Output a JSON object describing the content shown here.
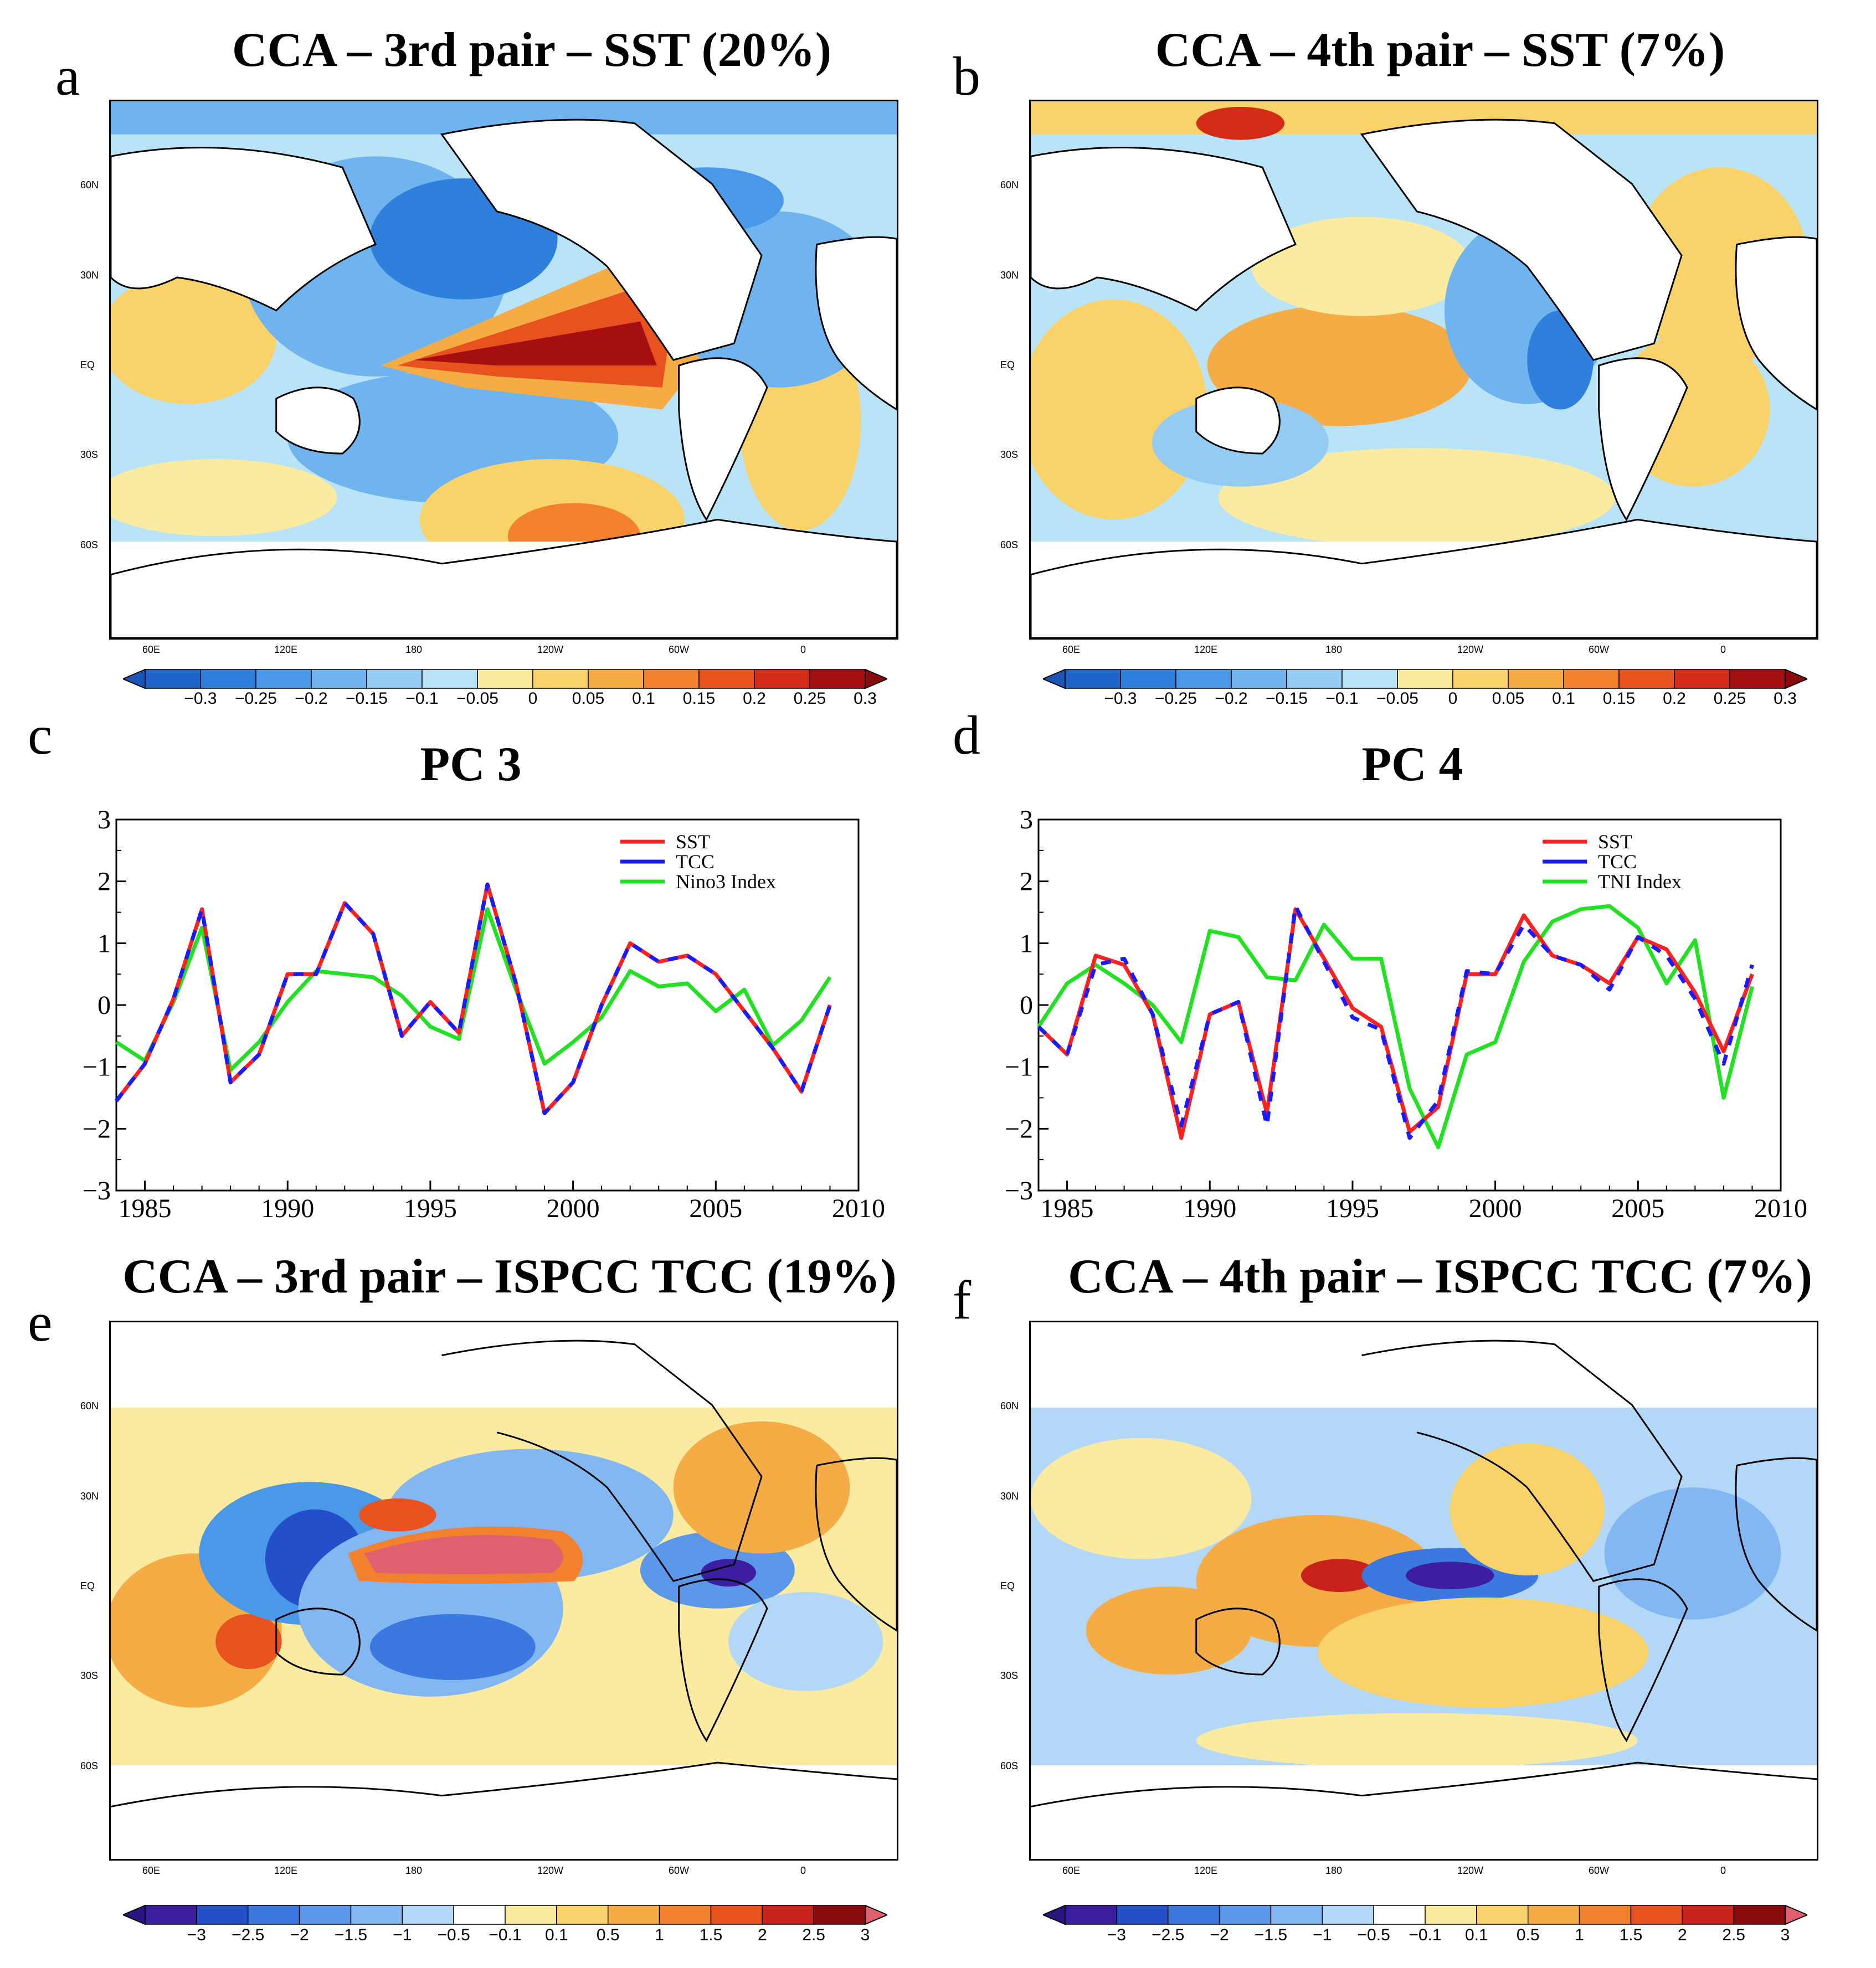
{
  "panels": {
    "a": {
      "letter": "a",
      "title": "CCA – 3rd pair – SST (20%)"
    },
    "b": {
      "letter": "b",
      "title": "CCA – 4th pair – SST (7%)"
    },
    "c": {
      "letter": "c",
      "title": "PC 3"
    },
    "d": {
      "letter": "d",
      "title": "PC 4"
    },
    "e": {
      "letter": "e",
      "title": "CCA – 3rd pair – ISPCC TCC (19%)"
    },
    "f": {
      "letter": "f",
      "title": "CCA – 4th pair – ISPCC TCC (7%)"
    }
  },
  "map_axes": {
    "lat_labels": [
      "60N",
      "30N",
      "EQ",
      "30S",
      "60S"
    ],
    "lon_labels": [
      "60E",
      "120E",
      "180",
      "120W",
      "60W",
      "0"
    ]
  },
  "colorbars": {
    "sst": {
      "ticks": [
        "-0.3",
        "-0.25",
        "-0.2",
        "-0.15",
        "-0.1",
        "-0.05",
        "0",
        "0.05",
        "0.1",
        "0.15",
        "0.2",
        "0.25",
        "0.3"
      ],
      "colors": [
        "#1e63c8",
        "#2f7fdc",
        "#4a98e8",
        "#6fb3ef",
        "#93cbf3",
        "#b9e3f7",
        "#fbeba0",
        "#fad26a",
        "#f6ac45",
        "#f2802c",
        "#e8521e",
        "#d22b17",
        "#a50f0f"
      ],
      "low_color": "#1a56b8",
      "high_color": "#8a0b0b"
    },
    "tcc": {
      "ticks": [
        "-3",
        "-2.5",
        "-2",
        "-1.5",
        "-1",
        "-0.5",
        "-0.1",
        "0.1",
        "0.5",
        "1",
        "1.5",
        "2",
        "2.5",
        "3"
      ],
      "colors": [
        "#3b1fa0",
        "#2350c8",
        "#3b78df",
        "#5c98ea",
        "#83b7f2",
        "#b3d8f7",
        "#ffffff",
        "#fbeba0",
        "#fad26a",
        "#f6ac45",
        "#f2802c",
        "#e8521e",
        "#c9221a",
        "#8a0b0b"
      ],
      "low_color": "#2a1580",
      "high_color": "#e06070"
    }
  },
  "chart_data": [
    {
      "type": "line",
      "panel": "c",
      "title": "PC 3",
      "x": [
        1984,
        1985,
        1986,
        1987,
        1988,
        1989,
        1990,
        1991,
        1992,
        1993,
        1994,
        1995,
        1996,
        1997,
        1998,
        1999,
        2000,
        2001,
        2002,
        2003,
        2004,
        2005,
        2006,
        2007,
        2008,
        2009
      ],
      "xticks": [
        1985,
        1990,
        1995,
        2000,
        2005,
        2010
      ],
      "yticks": [
        -3,
        -2,
        -1,
        0,
        1,
        2,
        3
      ],
      "xlim": [
        1984,
        2010
      ],
      "ylim": [
        -3,
        3
      ],
      "series": [
        {
          "name": "SST",
          "color": "#ff2020",
          "values": [
            -1.55,
            -0.95,
            0.1,
            1.55,
            -1.25,
            -0.8,
            0.5,
            0.5,
            1.65,
            1.15,
            -0.5,
            0.05,
            -0.45,
            1.95,
            0.35,
            -1.75,
            -1.25,
            0.0,
            1.0,
            0.7,
            0.8,
            0.5,
            -0.1,
            -0.7,
            -1.4,
            0.0
          ]
        },
        {
          "name": "TCC",
          "color": "#1a1aff",
          "dashed_with": "SST",
          "values": [
            -1.55,
            -0.95,
            0.1,
            1.55,
            -1.25,
            -0.8,
            0.5,
            0.5,
            1.65,
            1.15,
            -0.5,
            0.05,
            -0.45,
            1.95,
            0.35,
            -1.75,
            -1.25,
            0.0,
            1.0,
            0.7,
            0.8,
            0.5,
            -0.1,
            -0.7,
            -1.4,
            0.0
          ]
        },
        {
          "name": "Nino3 Index",
          "color": "#22e022",
          "values": [
            -0.6,
            -0.9,
            0.05,
            1.25,
            -1.05,
            -0.6,
            0.05,
            0.55,
            0.5,
            0.45,
            0.15,
            -0.35,
            -0.55,
            1.55,
            0.25,
            -0.95,
            -0.6,
            -0.2,
            0.55,
            0.3,
            0.35,
            -0.1,
            0.25,
            -0.65,
            -0.25,
            0.45
          ]
        }
      ],
      "legend": "top-right"
    },
    {
      "type": "line",
      "panel": "d",
      "title": "PC 4",
      "x": [
        1984,
        1985,
        1986,
        1987,
        1988,
        1989,
        1990,
        1991,
        1992,
        1993,
        1994,
        1995,
        1996,
        1997,
        1998,
        1999,
        2000,
        2001,
        2002,
        2003,
        2004,
        2005,
        2006,
        2007,
        2008,
        2009
      ],
      "xticks": [
        1985,
        1990,
        1995,
        2000,
        2005,
        2010
      ],
      "yticks": [
        -3,
        -2,
        -1,
        0,
        1,
        2,
        3
      ],
      "xlim": [
        1984,
        2010
      ],
      "ylim": [
        -3,
        3
      ],
      "series": [
        {
          "name": "SST",
          "color": "#ff2020",
          "values": [
            -0.35,
            -0.8,
            0.8,
            0.65,
            -0.15,
            -2.15,
            -0.15,
            0.05,
            -1.75,
            1.55,
            0.75,
            -0.05,
            -0.35,
            -2.05,
            -1.65,
            0.5,
            0.5,
            1.45,
            0.8,
            0.65,
            0.35,
            1.1,
            0.9,
            0.2,
            -0.75,
            0.5
          ]
        },
        {
          "name": "TCC",
          "color": "#1a1aff",
          "dashed_with": "SST",
          "values": [
            -0.35,
            -0.8,
            0.65,
            0.75,
            -0.15,
            -1.95,
            -0.15,
            0.05,
            -1.95,
            1.6,
            0.7,
            -0.2,
            -0.4,
            -2.15,
            -1.55,
            0.55,
            0.5,
            1.3,
            0.8,
            0.65,
            0.25,
            1.1,
            0.8,
            0.1,
            -0.95,
            0.65
          ]
        },
        {
          "name": "TNI Index",
          "color": "#22e022",
          "values": [
            -0.35,
            0.35,
            0.65,
            0.35,
            0.0,
            -0.6,
            1.2,
            1.1,
            0.45,
            0.4,
            1.3,
            0.75,
            0.75,
            -1.35,
            -2.3,
            -0.8,
            -0.6,
            0.7,
            1.35,
            1.55,
            1.6,
            1.25,
            0.35,
            1.05,
            -1.5,
            0.3
          ]
        }
      ],
      "legend": "top-right"
    }
  ]
}
